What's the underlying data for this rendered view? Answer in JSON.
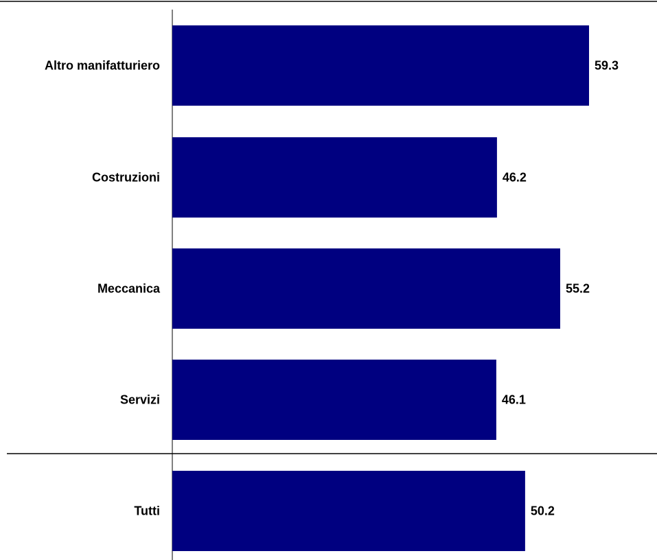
{
  "chart_data": {
    "type": "bar",
    "orientation": "horizontal",
    "categories": [
      "Altro manifatturiero",
      "Costruzioni",
      "Meccanica",
      "Servizi",
      "Tutti"
    ],
    "category_keys": [
      "altro-manifatturiero",
      "costruzioni",
      "meccanica",
      "servizi",
      "tutti"
    ],
    "values": [
      59.3,
      46.2,
      55.2,
      46.1,
      50.2
    ],
    "value_labels": [
      "59.3",
      "46.2",
      "55.2",
      "46.1",
      "50.2"
    ],
    "xlim": [
      0,
      69.2
    ],
    "grid": false,
    "legend": "none",
    "separator_after_category": "Servizi",
    "bar_color": "#000080"
  }
}
